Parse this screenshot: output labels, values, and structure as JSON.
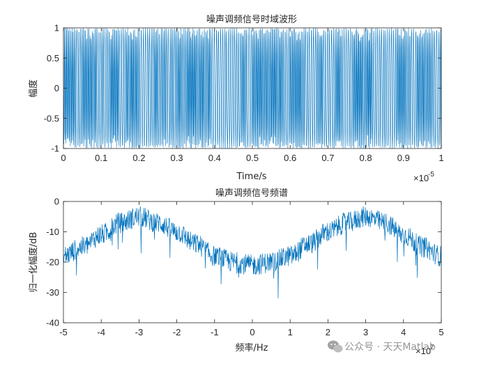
{
  "chart_data": [
    {
      "type": "line",
      "title": "噪声调频信号时域波形",
      "xlabel": "Time/s",
      "ylabel": "幅度",
      "xlim": [
        0,
        1e-05
      ],
      "ylim": [
        -1,
        1
      ],
      "x_ticks": [
        0,
        0.1,
        0.2,
        0.3,
        0.4,
        0.5,
        0.6,
        0.7,
        0.8,
        0.9,
        1
      ],
      "x_tick_labels": [
        "0",
        "0.1",
        "0.2",
        "0.3",
        "0.4",
        "0.5",
        "0.6",
        "0.7",
        "0.8",
        "0.9",
        "1"
      ],
      "y_ticks": [
        -1,
        -0.5,
        0,
        0.5,
        1
      ],
      "y_tick_labels": [
        "-1",
        "-0.5",
        "0",
        "0.5",
        "1"
      ],
      "x_exponent": "×10",
      "x_exponent_power": "-5",
      "grid": false,
      "color": "#0072BD",
      "series": [
        {
          "description": "dense noise-FM waveform spanning full amplitude range",
          "amplitude": 1.0
        }
      ]
    },
    {
      "type": "line",
      "title": "噪声调频信号频谱",
      "xlabel": "频率/Hz",
      "ylabel": "归一化幅度/dB",
      "xlim": [
        -5,
        5
      ],
      "ylim": [
        -40,
        0
      ],
      "x_ticks": [
        -5,
        -4,
        -3,
        -2,
        -1,
        0,
        1,
        2,
        3,
        4,
        5
      ],
      "x_tick_labels": [
        "-5",
        "-4",
        "-3",
        "-2",
        "-1",
        "0",
        "1",
        "2",
        "3",
        "4",
        "5"
      ],
      "y_ticks": [
        -40,
        -30,
        -20,
        -10,
        0
      ],
      "y_tick_labels": [
        "-40",
        "-30",
        "-20",
        "-10",
        "0"
      ],
      "x_exponent": "×10",
      "x_exponent_power": "7",
      "grid": false,
      "color": "#0072BD",
      "envelope": {
        "x": [
          -5,
          -4.5,
          -4,
          -3.5,
          -3,
          -2.5,
          -2,
          -1.5,
          -1,
          -0.5,
          0,
          0.5,
          1,
          1.5,
          2,
          2.5,
          3,
          3.5,
          4,
          4.5,
          5
        ],
        "y": [
          -18,
          -15,
          -11,
          -7,
          -5,
          -7,
          -10,
          -14,
          -18,
          -20,
          -21,
          -20,
          -18,
          -14,
          -10,
          -7,
          -5,
          -7,
          -11,
          -15,
          -18
        ]
      }
    }
  ],
  "watermark": {
    "text": "公众号 · 天天Matlab"
  }
}
